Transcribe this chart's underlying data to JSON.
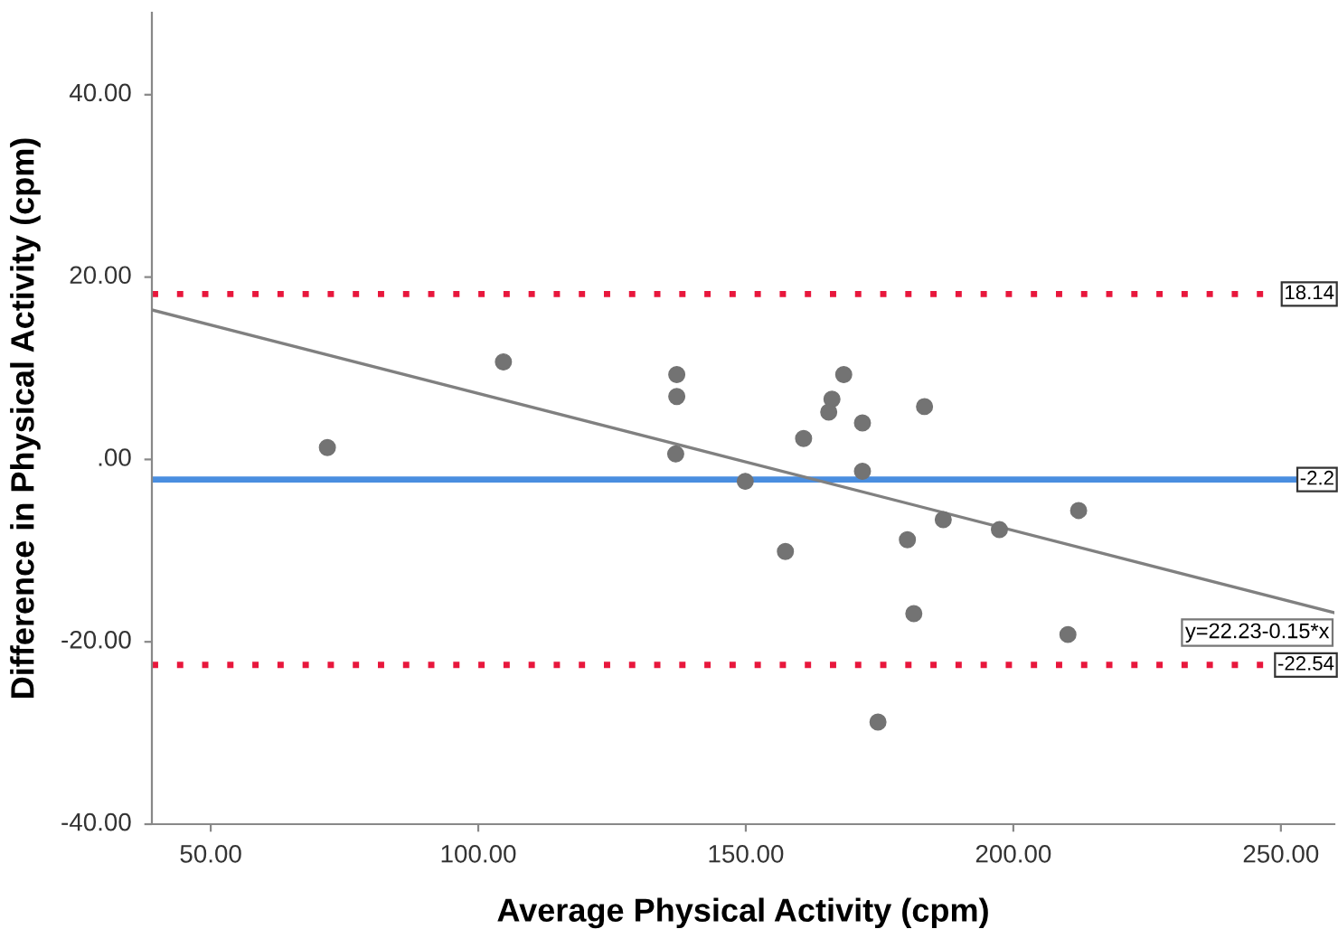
{
  "chart_data": {
    "type": "scatter",
    "xlabel": "Average Physical Activity (cpm)",
    "ylabel": "Difference in Physical Activity (cpm)",
    "x": [
      71.8,
      104.7,
      137.1,
      137.1,
      136.9,
      149.9,
      157.4,
      160.8,
      168.3,
      166.1,
      165.5,
      171.8,
      183.4,
      171.8,
      186.9,
      180.2,
      197.4,
      212.2,
      181.4,
      210.2,
      174.7
    ],
    "series": [
      {
        "color": "#737373",
        "marker": "circle",
        "values": [
          1.3,
          10.7,
          9.3,
          6.9,
          0.6,
          -2.4,
          -10.1,
          2.3,
          9.3,
          6.6,
          5.2,
          4.0,
          5.8,
          -1.3,
          -6.6,
          -8.8,
          -7.7,
          -5.6,
          -16.9,
          -19.2,
          -28.8
        ]
      },
      {
        "type": "line",
        "color": "#808080",
        "marker": "none",
        "x": [
          39,
          260
        ],
        "values": [
          16.4,
          -16.8
        ]
      }
    ],
    "xlim": [
      39,
      260
    ],
    "ylim": [
      -40,
      49
    ],
    "xticks": [
      {
        "value": 50,
        "label": "50.00"
      },
      {
        "value": 100,
        "label": "100.00"
      },
      {
        "value": 150,
        "label": "150.00"
      },
      {
        "value": 200,
        "label": "200.00"
      },
      {
        "value": 250,
        "label": "250.00"
      }
    ],
    "yticks": [
      {
        "value": -40,
        "label": "-40.00"
      },
      {
        "value": -20,
        "label": "-20.00"
      },
      {
        "value": 0,
        "label": ".00"
      },
      {
        "value": 20,
        "label": "20.00"
      },
      {
        "value": 40,
        "label": "40.00"
      }
    ],
    "ref_lines": [
      {
        "axis": "y",
        "value": 18.14,
        "label": "18.14",
        "color": "#e8173c",
        "line_style": "dotted"
      },
      {
        "axis": "y",
        "value": -2.2,
        "label": "-2.2",
        "color": "#4a8ee0",
        "line_style": "solid"
      },
      {
        "axis": "y",
        "value": -22.54,
        "label": "-22.54",
        "color": "#e8173c",
        "line_style": "dotted"
      }
    ],
    "annotations": [
      {
        "text": "y=22.23-0.15*x",
        "x": 260,
        "y": -16.8
      }
    ],
    "grid": false,
    "legend": false
  }
}
